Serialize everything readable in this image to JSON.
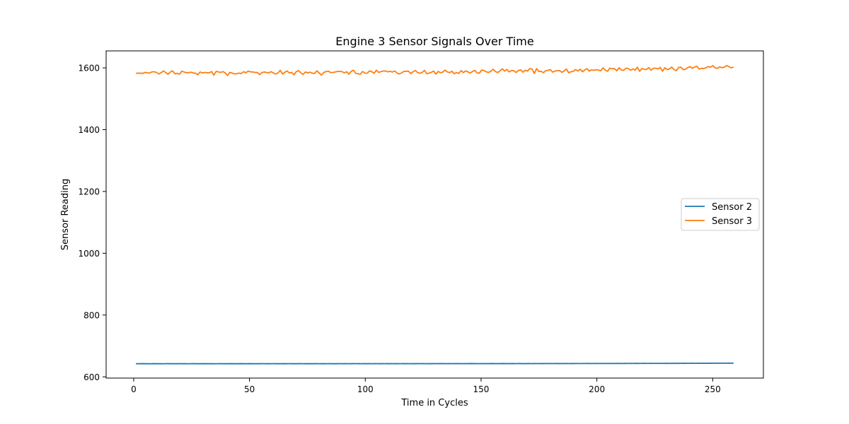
{
  "chart_data": {
    "type": "line",
    "title": "Engine 3 Sensor Signals Over Time",
    "xlabel": "Time in Cycles",
    "ylabel": "Sensor Reading",
    "xlim": [
      -11.9,
      271.9
    ],
    "ylim": [
      596,
      1655
    ],
    "xticks": [
      0,
      50,
      100,
      150,
      200,
      250
    ],
    "yticks": [
      600,
      800,
      1000,
      1200,
      1400,
      1600
    ],
    "grid": false,
    "legend_position": "center-right",
    "x_start": 1,
    "x_end": 259,
    "series": [
      {
        "name": "Sensor 2",
        "color": "#1f77b4",
        "values": [
          642.5,
          642.6,
          642.4,
          642.7,
          642.5,
          642.6,
          642.3,
          642.5,
          642.8,
          642.4,
          642.6,
          642.5,
          642.3,
          642.6,
          642.7,
          642.5,
          642.4,
          642.6,
          642.5,
          642.7,
          642.4,
          642.6,
          642.5,
          642.3,
          642.6,
          642.8,
          642.5,
          642.4,
          642.6,
          642.5,
          642.7,
          642.5,
          642.4,
          642.6,
          642.5,
          642.3,
          642.6,
          642.7,
          642.5,
          642.4,
          642.6,
          642.5,
          642.8,
          642.4,
          642.6,
          642.5,
          642.7,
          642.5,
          642.6,
          642.4,
          642.7,
          642.5,
          642.6,
          642.5,
          642.4,
          642.7,
          642.6,
          642.5,
          642.6,
          642.4,
          642.6,
          642.7,
          642.5,
          642.6,
          642.4,
          642.7,
          642.5,
          642.6,
          642.8,
          642.5,
          642.6,
          642.4,
          642.7,
          642.6,
          642.5,
          642.7,
          642.4,
          642.6,
          642.5,
          642.7,
          642.6,
          642.4,
          642.7,
          642.5,
          642.6,
          642.8,
          642.5,
          642.6,
          642.4,
          642.7,
          642.6,
          642.5,
          642.7,
          642.6,
          642.4,
          642.7,
          642.6,
          642.8,
          642.5,
          642.6,
          642.7,
          642.5,
          642.8,
          642.6,
          642.5,
          642.7,
          642.6,
          642.4,
          642.7,
          642.6,
          642.8,
          642.5,
          642.7,
          642.6,
          642.5,
          642.8,
          642.6,
          642.7,
          642.5,
          642.8,
          642.6,
          642.7,
          642.5,
          642.8,
          642.6,
          642.7,
          642.9,
          642.6,
          642.7,
          642.5,
          642.8,
          642.7,
          642.6,
          642.8,
          642.7,
          642.9,
          642.6,
          642.8,
          642.7,
          642.6,
          642.9,
          642.7,
          642.8,
          642.6,
          642.9,
          642.7,
          642.8,
          643.0,
          642.7,
          642.8,
          642.6,
          642.9,
          642.8,
          642.7,
          642.9,
          642.8,
          643.0,
          642.7,
          642.9,
          642.8,
          642.7,
          643.0,
          642.8,
          642.9,
          642.7,
          643.0,
          642.8,
          642.9,
          643.1,
          642.8,
          642.9,
          642.7,
          643.0,
          642.9,
          642.8,
          643.0,
          642.9,
          643.1,
          642.8,
          643.0,
          642.9,
          643.2,
          643.0,
          642.9,
          643.1,
          643.0,
          642.8,
          643.1,
          643.0,
          643.2,
          642.9,
          643.1,
          643.0,
          643.2,
          643.1,
          642.9,
          643.2,
          643.1,
          643.3,
          643.0,
          643.2,
          643.1,
          643.3,
          643.1,
          643.2,
          643.4,
          643.1,
          643.3,
          643.2,
          643.4,
          643.2,
          643.3,
          643.5,
          643.2,
          643.4,
          643.3,
          643.5,
          643.3,
          643.4,
          643.6,
          643.3,
          643.5,
          643.4,
          643.6,
          643.4,
          643.5,
          643.7,
          643.4,
          643.6,
          643.5,
          643.7,
          643.5,
          643.6,
          643.8,
          643.5,
          643.7,
          643.6,
          643.8,
          643.6,
          643.7,
          643.9,
          643.6,
          643.8,
          643.7,
          643.9,
          643.7,
          643.8,
          644.0,
          643.8,
          643.9,
          643.8,
          644.0,
          643.9,
          644.0,
          644.1,
          643.9,
          644.0,
          644.1,
          644.0,
          644.1,
          644.2,
          644.1,
          644.2
        ]
      },
      {
        "name": "Sensor 3",
        "color": "#ff7f0e",
        "values": [
          1582.5,
          1583.0,
          1582.8,
          1582.2,
          1585.6,
          1583.8,
          1583.2,
          1587.3,
          1587.2,
          1585.1,
          1580.1,
          1584.8,
          1589.8,
          1584.9,
          1579.3,
          1586.9,
          1590.3,
          1580.8,
          1582.5,
          1579.4,
          1589.1,
          1586.6,
          1584.2,
          1584.4,
          1586.1,
          1583.4,
          1582.8,
          1577.7,
          1586.7,
          1583.4,
          1585.1,
          1584.5,
          1583.8,
          1588.3,
          1576.2,
          1588.6,
          1587.0,
          1585.3,
          1588.0,
          1583.4,
          1575.4,
          1585.3,
          1583.2,
          1580.2,
          1581.2,
          1583.0,
          1581.6,
          1587.6,
          1584.1,
          1589.6,
          1587.3,
          1586.8,
          1585.3,
          1585.1,
          1578.2,
          1584.7,
          1586.7,
          1585.2,
          1583.6,
          1587.8,
          1583.6,
          1580.2,
          1583.6,
          1592.3,
          1580.1,
          1585.8,
          1590.0,
          1583.8,
          1585.5,
          1577.7,
          1588.0,
          1591.2,
          1583.7,
          1578.8,
          1586.9,
          1583.8,
          1586.0,
          1582.8,
          1581.9,
          1590.4,
          1583.6,
          1576.5,
          1585.3,
          1587.8,
          1589.4,
          1584.9,
          1585.0,
          1586.8,
          1588.4,
          1588.7,
          1587.8,
          1583.9,
          1587.3,
          1579.7,
          1588.8,
          1592.6,
          1582.1,
          1581.0,
          1579.6,
          1588.5,
          1582.8,
          1582.6,
          1590.1,
          1587.6,
          1582.5,
          1592.5,
          1585.2,
          1588.0,
          1589.9,
          1589.8,
          1587.1,
          1589.0,
          1586.5,
          1590.1,
          1583.4,
          1580.1,
          1583.8,
          1588.3,
          1588.9,
          1589.4,
          1581.5,
          1587.5,
          1591.5,
          1584.9,
          1582.4,
          1585.2,
          1592.1,
          1580.8,
          1582.9,
          1585.5,
          1589.8,
          1579.7,
          1588.6,
          1584.4,
          1586.2,
          1592.9,
          1586.9,
          1584.5,
          1589.0,
          1580.9,
          1585.2,
          1581.8,
          1591.2,
          1584.8,
          1590.3,
          1587.2,
          1583.6,
          1588.3,
          1592.0,
          1583.7,
          1582.8,
          1593.1,
          1591.3,
          1587.2,
          1585.1,
          1589.4,
          1595.5,
          1588.2,
          1584.9,
          1590.7,
          1596.9,
          1589.5,
          1594.8,
          1586.7,
          1591.5,
          1590.8,
          1585.0,
          1591.7,
          1593.8,
          1585.9,
          1592.3,
          1589.5,
          1597.5,
          1596.5,
          1581.8,
          1597.6,
          1588.2,
          1588.6,
          1584.4,
          1591.3,
          1591.9,
          1594.6,
          1586.2,
          1589.4,
          1591.0,
          1591.2,
          1585.6,
          1589.7,
          1596.5,
          1584.1,
          1587.6,
          1588.7,
          1594.8,
          1589.9,
          1595.7,
          1587.6,
          1593.2,
          1597.6,
          1589.6,
          1593.6,
          1592.2,
          1593.8,
          1592.9,
          1590.6,
          1600.0,
          1592.6,
          1589.0,
          1599.4,
          1597.1,
          1597.7,
          1590.5,
          1600.2,
          1593.4,
          1591.9,
          1598.9,
          1597.9,
          1592.2,
          1596.7,
          1592.8,
          1602.3,
          1588.8,
          1598.3,
          1594.9,
          1595.0,
          1600.7,
          1592.7,
          1598.6,
          1598.9,
          1596.5,
          1601.4,
          1589.1,
          1600.6,
          1594.7,
          1596.4,
          1602.6,
          1594.7,
          1590.8,
          1601.3,
          1602.4,
          1594.4,
          1595.4,
          1600.7,
          1604.1,
          1598.4,
          1602.6,
          1605.2,
          1596.0,
          1598.5,
          1598.0,
          1600.3,
          1604.2,
          1602.3,
          1607.2,
          1599.2,
          1598.8,
          1603.0,
          1600.5,
          1602.4,
          1607.7,
          1604.1,
          1600.0,
          1602.6
        ]
      }
    ]
  }
}
